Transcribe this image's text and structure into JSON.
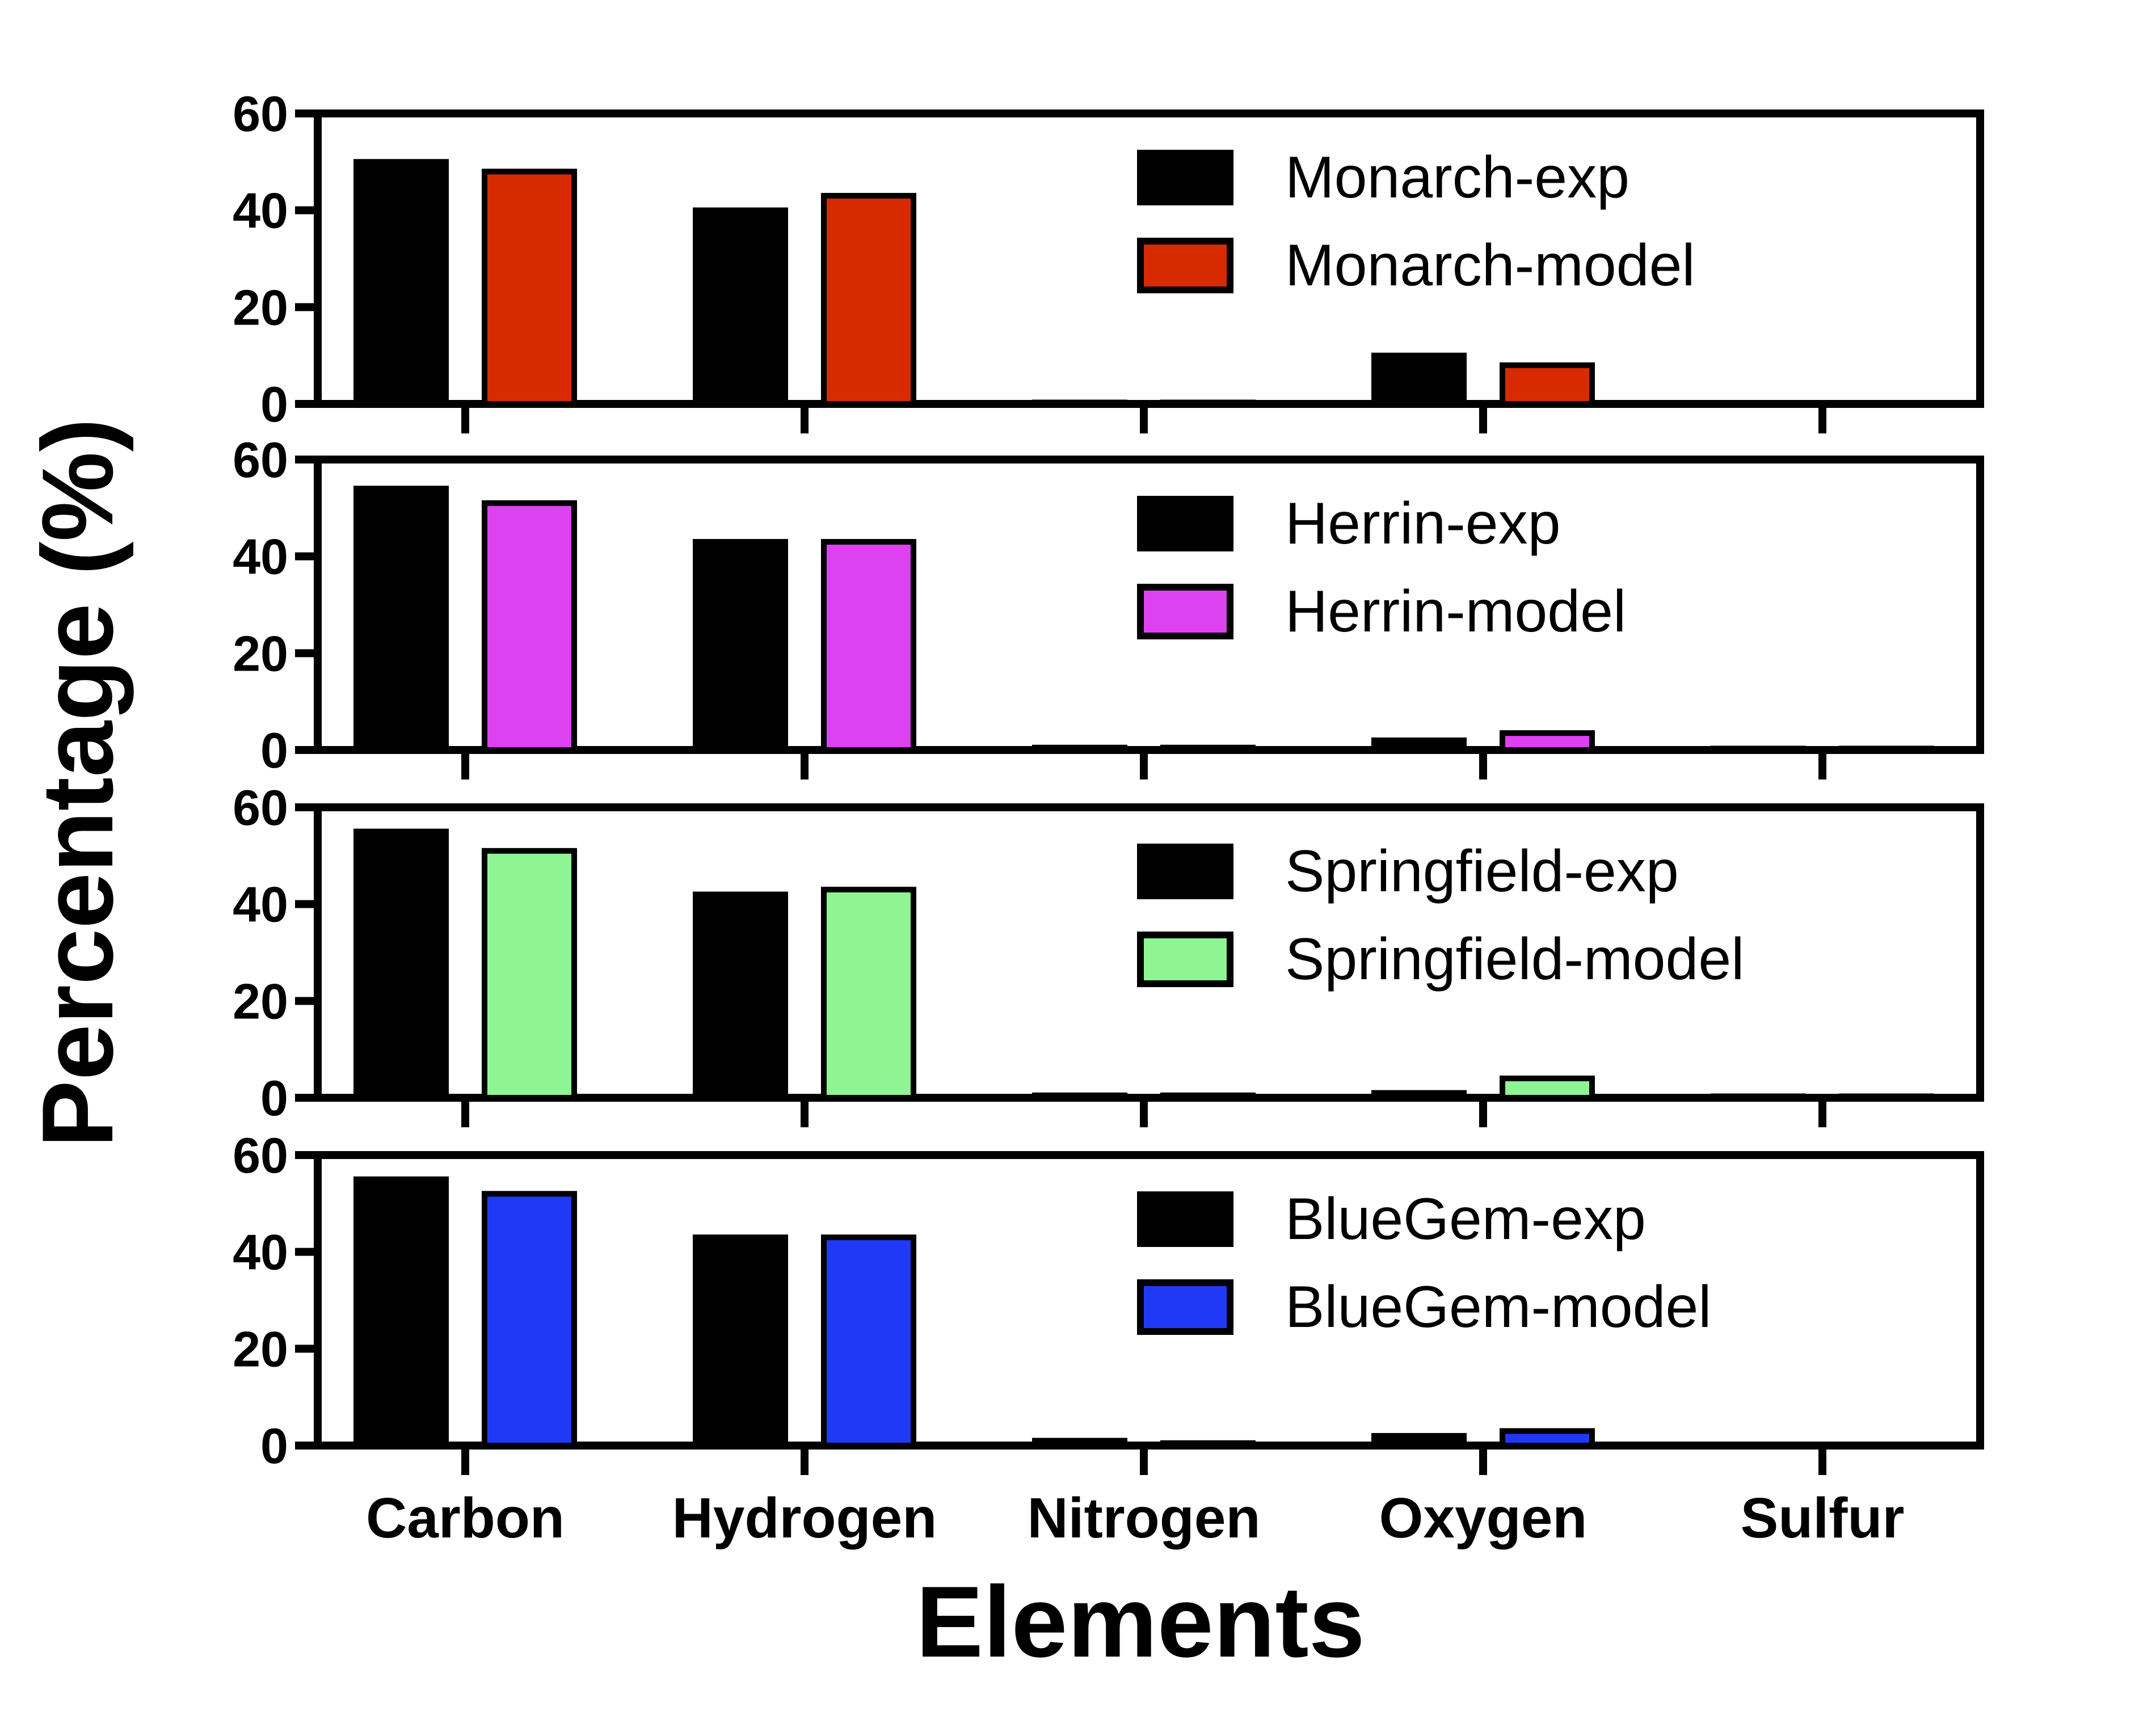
{
  "chart_data": {
    "type": "bar",
    "ylabel": "Percentage (%)",
    "xlabel": "Elements",
    "categories": [
      "Carbon",
      "Hydrogen",
      "Nitrogen",
      "Oxygen",
      "Sulfur"
    ],
    "ylim": [
      0,
      60
    ],
    "yticks": [
      "0",
      "20",
      "40",
      "60"
    ],
    "panels": [
      {
        "legend_position": "top-right",
        "series": [
          {
            "name": "Monarch-exp",
            "color": "#000000",
            "values": [
              50,
              40,
              0.3,
              10,
              0
            ]
          },
          {
            "name": "Monarch-model",
            "color": "#d82a00",
            "values": [
              48,
              43,
              0.3,
              8,
              0
            ]
          }
        ]
      },
      {
        "legend_position": "top-right",
        "series": [
          {
            "name": "Herrin-exp",
            "color": "#000000",
            "values": [
              54,
              43,
              0.5,
              2,
              0.3
            ]
          },
          {
            "name": "Herrin-model",
            "color": "#dd41f0",
            "values": [
              51,
              43,
              0.5,
              3.5,
              0.3
            ]
          }
        ]
      },
      {
        "legend_position": "top-right",
        "series": [
          {
            "name": "Springfield-exp",
            "color": "#000000",
            "values": [
              55,
              42,
              0.5,
              1,
              0.3
            ]
          },
          {
            "name": "Springfield-model",
            "color": "#8ff592",
            "values": [
              51,
              43,
              0.5,
              4,
              0.3
            ]
          }
        ]
      },
      {
        "legend_position": "top-right",
        "series": [
          {
            "name": "BlueGem-exp",
            "color": "#000000",
            "values": [
              55,
              43,
              1,
              2,
              0
            ]
          },
          {
            "name": "BlueGem-model",
            "color": "#2039f7",
            "values": [
              52,
              43,
              0.5,
              3,
              0
            ]
          }
        ]
      }
    ]
  }
}
